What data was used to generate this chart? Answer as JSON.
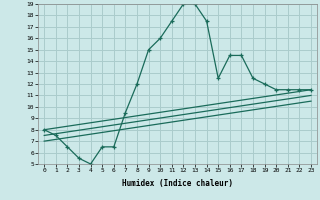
{
  "xlabel": "Humidex (Indice chaleur)",
  "bg_color": "#cce8e8",
  "grid_color": "#aacccc",
  "line_color": "#1a6b5a",
  "xlim": [
    -0.5,
    23.5
  ],
  "ylim": [
    5,
    19
  ],
  "xticks": [
    0,
    1,
    2,
    3,
    4,
    5,
    6,
    7,
    8,
    9,
    10,
    11,
    12,
    13,
    14,
    15,
    16,
    17,
    18,
    19,
    20,
    21,
    22,
    23
  ],
  "yticks": [
    5,
    6,
    7,
    8,
    9,
    10,
    11,
    12,
    13,
    14,
    15,
    16,
    17,
    18,
    19
  ],
  "series1_x": [
    0,
    1,
    2,
    3,
    4,
    5,
    6,
    7,
    8,
    9,
    10,
    11,
    12,
    13,
    14,
    15,
    16,
    17,
    18,
    19,
    20,
    21,
    22,
    23
  ],
  "series1_y": [
    8.0,
    7.5,
    6.5,
    5.5,
    5.0,
    6.5,
    6.5,
    9.5,
    12.0,
    15.0,
    16.0,
    17.5,
    19.0,
    19.0,
    17.5,
    12.5,
    14.5,
    14.5,
    12.5,
    12.0,
    11.5,
    11.5,
    11.5,
    11.5
  ],
  "series2_x": [
    0,
    23
  ],
  "series2_y": [
    8.0,
    11.5
  ],
  "series3_x": [
    0,
    23
  ],
  "series3_y": [
    7.5,
    11.0
  ],
  "series4_x": [
    0,
    23
  ],
  "series4_y": [
    7.0,
    10.5
  ]
}
